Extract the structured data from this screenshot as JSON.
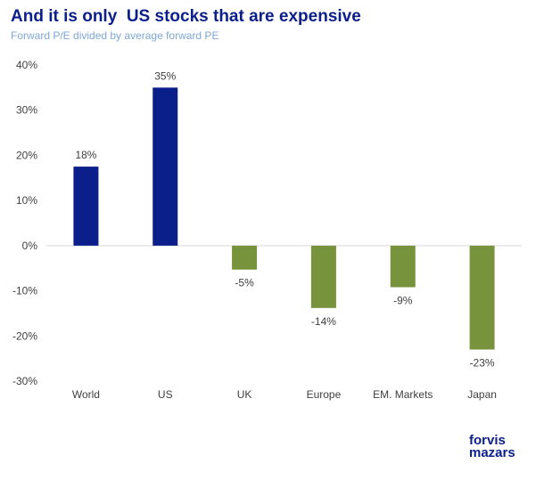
{
  "title": "And it is only  US stocks that are expensive",
  "subtitle": "Forward P/E divided by average forward PE",
  "logo": {
    "line1": "forvis",
    "line2": "mazars"
  },
  "colors": {
    "positive": "#0b1f8a",
    "negative": "#77933c",
    "title": "#0b1f8a",
    "subtitle": "#7da7d8"
  },
  "chart_data": {
    "type": "bar",
    "title": "And it is only  US stocks that are expensive",
    "subtitle": "Forward P/E divided by average forward PE",
    "categories": [
      "World",
      "US",
      "UK",
      "Europe",
      "EM. Markets",
      "Japan"
    ],
    "values": [
      17.5,
      35,
      -5.3,
      -13.8,
      -9.2,
      -23
    ],
    "data_labels": [
      "18%",
      "35%",
      "-5%",
      "-14%",
      "-9%",
      "-23%"
    ],
    "ylim": [
      -30,
      40
    ],
    "yticks": [
      40,
      30,
      20,
      10,
      0,
      -10,
      -20,
      -30
    ],
    "ytick_labels": [
      "40%",
      "30%",
      "20%",
      "10%",
      "0%",
      "-10%",
      "-20%",
      "-30%"
    ],
    "grid": false,
    "legend": "none",
    "xlabel": "",
    "ylabel": ""
  }
}
